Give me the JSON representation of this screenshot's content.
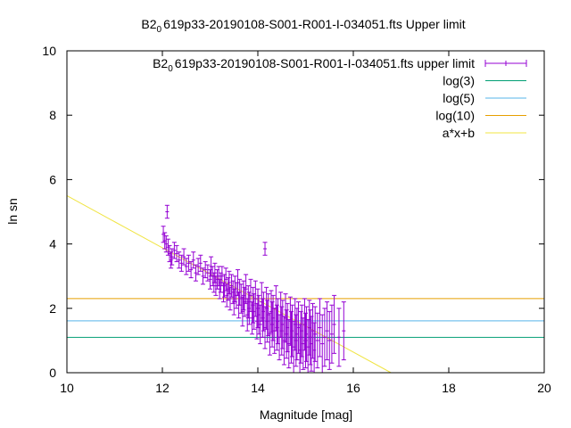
{
  "chart_data": {
    "type": "scatter",
    "title": {
      "prefix": "B2",
      "sub": "0",
      "suffix": "619p33-20190108-S001-R001-I-034051.fts Upper limit"
    },
    "xlabel": "Magnitude [mag]",
    "ylabel": "ln sn",
    "xlim": [
      10,
      20
    ],
    "ylim": [
      0,
      10
    ],
    "xticks": [
      "10",
      "12",
      "14",
      "16",
      "18",
      "20"
    ],
    "yticks": [
      "0",
      "2",
      "4",
      "6",
      "8",
      "10"
    ],
    "grid": false,
    "legend_position": "top-right",
    "legend": [
      {
        "label_prefix": "B2",
        "label_sub": "0",
        "label_suffix": "619p33-20190108-S001-R001-I-034051.fts upper limit",
        "color": "#9400d3",
        "style": "errorbars"
      },
      {
        "label": "log(3)",
        "color": "#009e73",
        "style": "line"
      },
      {
        "label": "log(5)",
        "color": "#56b4e9",
        "style": "line"
      },
      {
        "label": "log(10)",
        "color": "#e69f00",
        "style": "line"
      },
      {
        "label": "a*x+b",
        "color": "#f0e442",
        "style": "line"
      }
    ],
    "hlines": [
      {
        "name": "log(3)",
        "y": 1.0986,
        "color": "#009e73"
      },
      {
        "name": "log(5)",
        "y": 1.6094,
        "color": "#56b4e9"
      },
      {
        "name": "log(10)",
        "y": 2.3026,
        "color": "#e69f00"
      }
    ],
    "fit_line": {
      "name": "a*x+b",
      "slope": -0.81,
      "intercept": 13.6,
      "color": "#f0e442"
    },
    "series": [
      {
        "name": "B2 0619p33-20190108-S001-R001-I-034051.fts upper limit",
        "color": "#9400d3",
        "x": [
          12.02,
          12.05,
          12.08,
          12.1,
          12.12,
          12.15,
          12.18,
          12.2,
          12.25,
          12.3,
          12.35,
          12.4,
          12.45,
          12.5,
          12.55,
          12.6,
          12.65,
          12.7,
          12.75,
          12.8,
          12.85,
          12.9,
          12.95,
          13.0,
          13.02,
          13.05,
          13.08,
          13.1,
          13.12,
          13.15,
          13.18,
          13.2,
          13.22,
          13.25,
          13.28,
          13.3,
          13.33,
          13.35,
          13.38,
          13.4,
          13.42,
          13.45,
          13.48,
          13.5,
          13.52,
          13.55,
          13.58,
          13.6,
          13.62,
          13.65,
          13.68,
          13.7,
          13.72,
          13.75,
          13.78,
          13.8,
          13.82,
          13.85,
          13.88,
          13.9,
          13.92,
          13.95,
          13.98,
          14.0,
          14.02,
          14.05,
          14.08,
          14.1,
          14.12,
          14.15,
          14.18,
          14.2,
          14.22,
          14.25,
          14.28,
          14.3,
          14.32,
          14.35,
          14.38,
          14.4,
          14.42,
          14.45,
          14.48,
          14.5,
          14.52,
          14.55,
          14.58,
          14.6,
          14.62,
          14.65,
          14.68,
          14.7,
          14.72,
          14.75,
          14.78,
          14.8,
          14.82,
          14.85,
          14.88,
          14.9,
          14.92,
          14.95,
          14.98,
          15.0,
          15.02,
          15.05,
          15.08,
          15.1,
          15.12,
          15.15,
          15.18,
          15.2,
          15.25,
          15.3,
          15.35,
          15.4,
          15.45,
          15.5,
          15.55,
          15.6,
          15.7,
          15.8,
          14.15
        ],
        "y": [
          4.3,
          4.1,
          4.0,
          5.0,
          3.9,
          3.7,
          3.5,
          3.6,
          3.8,
          3.7,
          3.5,
          3.4,
          3.6,
          3.3,
          3.4,
          3.2,
          3.5,
          3.1,
          3.3,
          3.4,
          3.0,
          3.2,
          3.1,
          2.9,
          3.3,
          3.0,
          2.8,
          3.1,
          2.7,
          2.9,
          3.0,
          2.6,
          2.8,
          3.0,
          2.5,
          2.7,
          2.9,
          2.4,
          2.6,
          2.8,
          2.3,
          2.7,
          2.5,
          2.2,
          2.6,
          2.4,
          2.8,
          2.1,
          2.5,
          2.3,
          1.9,
          2.4,
          2.2,
          2.6,
          1.8,
          2.2,
          2.0,
          2.4,
          1.7,
          2.1,
          1.9,
          2.3,
          1.6,
          2.0,
          1.8,
          1.5,
          2.2,
          1.7,
          1.9,
          1.4,
          2.0,
          1.6,
          1.8,
          1.2,
          1.9,
          1.5,
          1.7,
          1.3,
          2.0,
          1.4,
          1.6,
          1.1,
          1.8,
          1.3,
          1.5,
          1.0,
          1.7,
          1.2,
          1.4,
          0.9,
          1.6,
          1.1,
          1.3,
          0.8,
          1.5,
          1.0,
          1.2,
          1.4,
          0.7,
          1.1,
          1.3,
          0.9,
          1.5,
          1.0,
          1.2,
          0.8,
          1.4,
          1.1,
          0.9,
          1.3,
          0.7,
          1.2,
          1.0,
          1.4,
          0.9,
          1.1,
          1.3,
          1.0,
          1.2,
          1.5,
          1.1,
          1.3,
          3.85
        ],
        "yerr": [
          0.25,
          0.25,
          0.25,
          0.2,
          0.25,
          0.25,
          0.25,
          0.25,
          0.25,
          0.25,
          0.25,
          0.25,
          0.25,
          0.25,
          0.25,
          0.25,
          0.25,
          0.25,
          0.25,
          0.25,
          0.25,
          0.25,
          0.25,
          0.3,
          0.3,
          0.3,
          0.3,
          0.3,
          0.3,
          0.3,
          0.3,
          0.3,
          0.3,
          0.3,
          0.3,
          0.35,
          0.35,
          0.35,
          0.35,
          0.35,
          0.35,
          0.35,
          0.35,
          0.4,
          0.4,
          0.4,
          0.4,
          0.4,
          0.4,
          0.45,
          0.45,
          0.45,
          0.45,
          0.45,
          0.5,
          0.5,
          0.5,
          0.5,
          0.5,
          0.55,
          0.55,
          0.55,
          0.55,
          0.6,
          0.6,
          0.6,
          0.6,
          0.6,
          0.6,
          0.65,
          0.65,
          0.65,
          0.65,
          0.65,
          0.65,
          0.7,
          0.7,
          0.7,
          0.7,
          0.7,
          0.7,
          0.7,
          0.7,
          0.75,
          0.75,
          0.75,
          0.75,
          0.75,
          0.75,
          0.75,
          0.75,
          0.8,
          0.8,
          0.8,
          0.8,
          0.8,
          0.8,
          0.8,
          0.8,
          0.8,
          0.8,
          0.8,
          0.8,
          0.85,
          0.85,
          0.85,
          0.85,
          0.85,
          0.85,
          0.85,
          0.85,
          0.85,
          0.85,
          0.9,
          0.9,
          0.9,
          0.9,
          0.9,
          0.9,
          0.9,
          0.9,
          0.9,
          0.2
        ]
      }
    ]
  }
}
